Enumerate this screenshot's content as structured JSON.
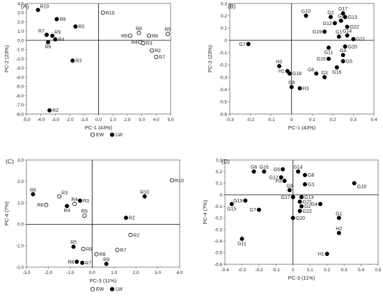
{
  "chart_data": [
    {
      "id": "A",
      "type": "scatter",
      "panel_label": "(A)",
      "xlabel": "PC-1 (43%)",
      "ylabel": "PC-2 (23%)",
      "xlim": [
        -5.0,
        5.0
      ],
      "ylim": [
        -8.0,
        4.0
      ],
      "xticks": [
        "-5.0",
        "-4.0",
        "-3.0",
        "-2.0",
        "-1.0",
        "0.0",
        "1.0",
        "2.0",
        "3.0",
        "4.0",
        "5.0"
      ],
      "xtick_values": [
        -5,
        -4,
        -3,
        -2,
        -1,
        0,
        1,
        2,
        3,
        4,
        5
      ],
      "yticks": [
        "4.0",
        "3.0",
        "2.0",
        "1.0",
        "0.0",
        "-1.0",
        "-2.0",
        "-3.0",
        "-4.0",
        "-5.0",
        "-6.0",
        "-7.0",
        "-8.0"
      ],
      "ytick_values": [
        4,
        3,
        2,
        1,
        0,
        -1,
        -2,
        -3,
        -4,
        -5,
        -6,
        -7,
        -8
      ],
      "grid": false,
      "legend": [
        {
          "label": "EW",
          "style": "open"
        },
        {
          "label": "LW",
          "style": "filled"
        }
      ],
      "legend_position": "bottom",
      "series": [
        {
          "name": "EW",
          "style": "open",
          "points": [
            {
              "label": "R10",
              "x": 0.3,
              "y": 3.0
            },
            {
              "label": "R5",
              "x": 4.8,
              "y": 0.7
            },
            {
              "label": "R6",
              "x": 2.8,
              "y": 0.8
            },
            {
              "label": "R8",
              "x": 3.5,
              "y": 0.5
            },
            {
              "label": "R9",
              "x": 2.2,
              "y": 0.5
            },
            {
              "label": "R4",
              "x": 2.9,
              "y": -0.2
            },
            {
              "label": "R3",
              "x": 3.1,
              "y": -0.3
            },
            {
              "label": "R2",
              "x": 3.7,
              "y": -1.1
            },
            {
              "label": "R7",
              "x": 4.0,
              "y": -1.8
            }
          ]
        },
        {
          "name": "LW",
          "style": "filled",
          "points": [
            {
              "label": "R10",
              "x": -4.2,
              "y": 3.3
            },
            {
              "label": "R8",
              "x": -2.9,
              "y": 2.3
            },
            {
              "label": "R5",
              "x": -1.6,
              "y": 1.5
            },
            {
              "label": "R7",
              "x": -3.6,
              "y": 0.6
            },
            {
              "label": "R9",
              "x": -3.2,
              "y": 0.5
            },
            {
              "label": "R4",
              "x": -3.0,
              "y": 0.1
            },
            {
              "label": "R6",
              "x": -3.5,
              "y": -0.2
            },
            {
              "label": "R3",
              "x": -1.8,
              "y": -2.2
            },
            {
              "label": "R2",
              "x": -3.4,
              "y": -7.6
            }
          ]
        }
      ]
    },
    {
      "id": "B",
      "type": "scatter",
      "panel_label": "(B)",
      "xlabel": "PC-1 (43%)",
      "ylabel": "PC-2 (23%)",
      "xlim": [
        -0.3,
        0.4
      ],
      "ylim": [
        -0.6,
        0.3
      ],
      "xticks": [
        "-0.3",
        "-0.2",
        "-0.1",
        "0",
        "0.1",
        "0.2",
        "0.3",
        "0.4"
      ],
      "xtick_values": [
        -0.3,
        -0.2,
        -0.1,
        0,
        0.1,
        0.2,
        0.3,
        0.4
      ],
      "yticks": [
        "0.3",
        "0.2",
        "0.1",
        "0",
        "-0.1",
        "-0.2",
        "-0.3",
        "-0.4",
        "-0.5",
        "-0.6"
      ],
      "ytick_values": [
        0.3,
        0.2,
        0.1,
        0,
        -0.1,
        -0.2,
        -0.3,
        -0.4,
        -0.5,
        -0.6
      ],
      "grid": false,
      "series": [
        {
          "name": "",
          "style": "filled",
          "points": [
            {
              "label": "G10",
              "x": 0.07,
              "y": 0.2
            },
            {
              "label": "G2",
              "x": 0.19,
              "y": 0.19
            },
            {
              "label": "G17",
              "x": 0.25,
              "y": 0.22
            },
            {
              "label": "G13",
              "x": 0.26,
              "y": 0.19
            },
            {
              "label": "G9",
              "x": 0.24,
              "y": 0.16
            },
            {
              "label": "G12",
              "x": 0.21,
              "y": 0.14
            },
            {
              "label": "G22",
              "x": 0.27,
              "y": 0.11
            },
            {
              "label": "G19",
              "x": 0.16,
              "y": 0.07
            },
            {
              "label": "G1",
              "x": 0.23,
              "y": 0.03
            },
            {
              "label": "G14",
              "x": 0.27,
              "y": 0.04
            },
            {
              "label": "G21",
              "x": 0.3,
              "y": 0.01
            },
            {
              "label": "G7",
              "x": -0.21,
              "y": -0.03
            },
            {
              "label": "G20",
              "x": 0.26,
              "y": -0.05
            },
            {
              "label": "G11",
              "x": 0.18,
              "y": -0.06
            },
            {
              "label": "G4",
              "x": 0.25,
              "y": -0.12
            },
            {
              "label": "G15",
              "x": 0.18,
              "y": -0.15
            },
            {
              "label": "G5",
              "x": 0.25,
              "y": -0.17
            },
            {
              "label": "H2",
              "x": -0.06,
              "y": -0.21
            },
            {
              "label": "G16",
              "x": 0.22,
              "y": -0.22
            },
            {
              "label": "H1",
              "x": -0.02,
              "y": -0.25
            },
            {
              "label": "G18",
              "x": -0.01,
              "y": -0.27
            },
            {
              "label": "G6",
              "x": 0.12,
              "y": -0.27
            },
            {
              "label": "G3",
              "x": 0.16,
              "y": -0.3
            },
            {
              "label": "G8",
              "x": 0.0,
              "y": -0.38
            },
            {
              "label": "H3",
              "x": 0.04,
              "y": -0.39
            }
          ]
        }
      ]
    },
    {
      "id": "C",
      "type": "scatter",
      "panel_label": "(C)",
      "xlabel": "PC-3 (11%)",
      "ylabel": "PC-4 (7%)",
      "xlim": [
        -3.0,
        4.0
      ],
      "ylim": [
        -2.0,
        3.0
      ],
      "xticks": [
        "-3.0",
        "-2.0",
        "-1.0",
        "0.0",
        "1.0",
        "2.0",
        "3.0",
        "4.0"
      ],
      "xtick_values": [
        -3,
        -2,
        -1,
        0,
        1,
        2,
        3,
        4
      ],
      "yticks": [
        "3.0",
        "2.0",
        "1.0",
        "0.0",
        "-1.0",
        "-2.0"
      ],
      "ytick_values": [
        3,
        2,
        1,
        0,
        -1,
        -2
      ],
      "grid": false,
      "legend": [
        {
          "label": "EW",
          "style": "open"
        },
        {
          "label": "LW",
          "style": "filled"
        }
      ],
      "legend_position": "bottom",
      "series": [
        {
          "name": "EW",
          "style": "open",
          "points": [
            {
              "label": "R10",
              "x": 3.65,
              "y": 2.05
            },
            {
              "label": "R3",
              "x": -1.5,
              "y": 1.3
            },
            {
              "label": "R6",
              "x": -2.1,
              "y": 0.9
            },
            {
              "label": "R4",
              "x": -0.8,
              "y": 0.95
            },
            {
              "label": "R5",
              "x": -0.35,
              "y": 0.4
            },
            {
              "label": "R2",
              "x": 1.75,
              "y": -0.5
            },
            {
              "label": "R9",
              "x": -0.4,
              "y": -1.15
            },
            {
              "label": "R8",
              "x": 0.2,
              "y": -1.4
            },
            {
              "label": "R7",
              "x": 1.15,
              "y": -1.2
            }
          ]
        },
        {
          "name": "LW",
          "style": "filled",
          "points": [
            {
              "label": "R6",
              "x": -2.7,
              "y": 1.4
            },
            {
              "label": "R10",
              "x": 2.4,
              "y": 1.3
            },
            {
              "label": "R3",
              "x": -0.55,
              "y": 1.1
            },
            {
              "label": "R4",
              "x": -1.15,
              "y": 0.85
            },
            {
              "label": "R2",
              "x": 1.55,
              "y": 0.3
            },
            {
              "label": "R5",
              "x": -0.85,
              "y": -1.05
            },
            {
              "label": "R8",
              "x": -0.7,
              "y": -1.75
            },
            {
              "label": "R7",
              "x": -0.45,
              "y": -1.8
            },
            {
              "label": "R9",
              "x": 0.65,
              "y": -1.85
            }
          ]
        }
      ]
    },
    {
      "id": "D",
      "type": "scatter",
      "panel_label": "(D)",
      "xlabel": "PC-3 (11%)",
      "ylabel": "PC-4 (7%)",
      "xlim": [
        -0.4,
        0.5
      ],
      "ylim": [
        -0.6,
        0.3
      ],
      "xticks": [
        "-0.4",
        "-0.3",
        "-0.2",
        "-0.1",
        "0",
        "0.1",
        "0.2",
        "0.3",
        "0.4",
        "0.5"
      ],
      "xtick_values": [
        -0.4,
        -0.3,
        -0.2,
        -0.1,
        0,
        0.1,
        0.2,
        0.3,
        0.4,
        0.5
      ],
      "yticks": [
        "0.3",
        "0.2",
        "0.1",
        "0",
        "-0.1",
        "-0.2",
        "-0.3",
        "-0.4",
        "-0.5",
        "-0.6"
      ],
      "ytick_values": [
        0.3,
        0.2,
        0.1,
        0,
        -0.1,
        -0.2,
        -0.3,
        -0.4,
        -0.5,
        -0.6
      ],
      "grid": false,
      "series": [
        {
          "name": "",
          "style": "filled",
          "points": [
            {
              "label": "G6",
              "x": -0.23,
              "y": 0.2
            },
            {
              "label": "G16",
              "x": -0.17,
              "y": 0.2
            },
            {
              "label": "G5",
              "x": -0.06,
              "y": 0.22
            },
            {
              "label": "G14",
              "x": 0.03,
              "y": 0.2
            },
            {
              "label": "G8",
              "x": 0.07,
              "y": 0.17
            },
            {
              "label": "G12",
              "x": -0.07,
              "y": 0.15
            },
            {
              "label": "H3",
              "x": -0.05,
              "y": 0.12
            },
            {
              "label": "G3",
              "x": 0.07,
              "y": 0.09
            },
            {
              "label": "G18",
              "x": 0.36,
              "y": 0.1
            },
            {
              "label": "G9",
              "x": -0.02,
              "y": 0.04
            },
            {
              "label": "G17",
              "x": 0.0,
              "y": -0.02
            },
            {
              "label": "G13",
              "x": 0.05,
              "y": -0.02
            },
            {
              "label": "G19",
              "x": -0.28,
              "y": -0.05
            },
            {
              "label": "G21",
              "x": 0.04,
              "y": -0.06
            },
            {
              "label": "G4",
              "x": 0.16,
              "y": -0.08
            },
            {
              "label": "G15",
              "x": -0.36,
              "y": -0.08
            },
            {
              "label": "G2",
              "x": 0.05,
              "y": -0.1
            },
            {
              "label": "G22",
              "x": 0.04,
              "y": -0.14
            },
            {
              "label": "G7",
              "x": -0.2,
              "y": -0.13
            },
            {
              "label": "G20",
              "x": 0.0,
              "y": -0.2
            },
            {
              "label": "G1",
              "x": 0.27,
              "y": -0.2
            },
            {
              "label": "G11",
              "x": -0.3,
              "y": -0.38
            },
            {
              "label": "H2",
              "x": 0.27,
              "y": -0.33
            },
            {
              "label": "H1",
              "x": 0.2,
              "y": -0.51
            }
          ]
        }
      ]
    }
  ]
}
